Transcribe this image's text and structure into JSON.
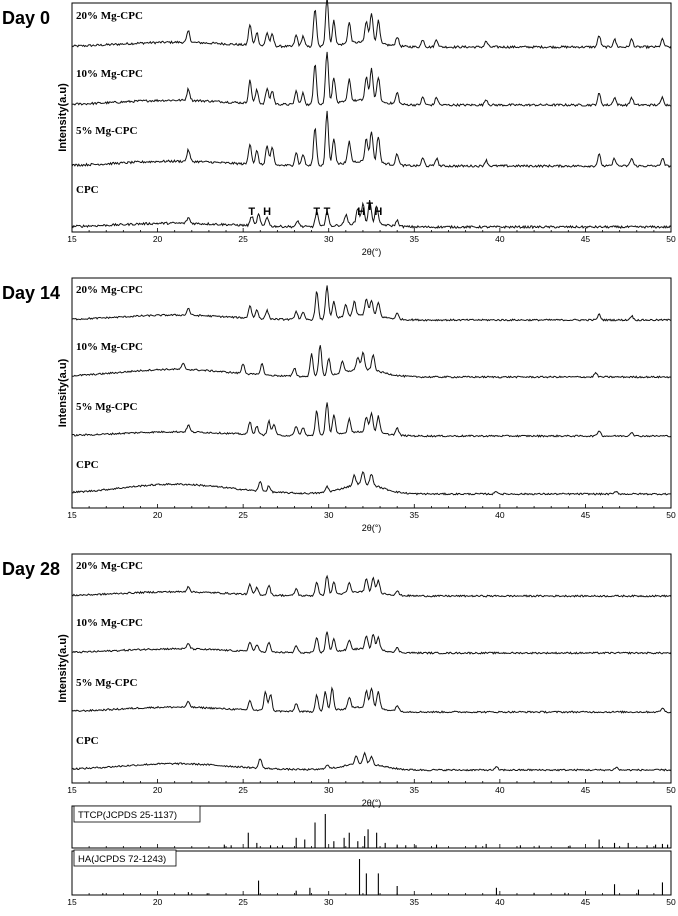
{
  "chart_data": [
    {
      "type": "line",
      "title": "Day 0",
      "xlabel": "2θ(°)",
      "ylabel": "Intensity(a.u)",
      "xlim": [
        15,
        50
      ],
      "xticks": [
        15,
        20,
        25,
        30,
        35,
        40,
        45,
        50
      ],
      "series": [
        {
          "name": "20% Mg-CPC",
          "peaks": [
            {
              "x": 21.8,
              "h": 0.3
            },
            {
              "x": 25.4,
              "h": 0.55
            },
            {
              "x": 25.8,
              "h": 0.35
            },
            {
              "x": 26.4,
              "h": 0.35
            },
            {
              "x": 26.7,
              "h": 0.3
            },
            {
              "x": 28.1,
              "h": 0.3
            },
            {
              "x": 28.5,
              "h": 0.28
            },
            {
              "x": 29.2,
              "h": 1.0
            },
            {
              "x": 29.9,
              "h": 1.3
            },
            {
              "x": 30.3,
              "h": 0.65
            },
            {
              "x": 31.2,
              "h": 0.55
            },
            {
              "x": 32.2,
              "h": 0.55
            },
            {
              "x": 32.5,
              "h": 0.8
            },
            {
              "x": 32.9,
              "h": 0.6
            },
            {
              "x": 34.0,
              "h": 0.25
            },
            {
              "x": 35.5,
              "h": 0.2
            },
            {
              "x": 36.3,
              "h": 0.2
            },
            {
              "x": 39.2,
              "h": 0.15
            },
            {
              "x": 45.8,
              "h": 0.3
            },
            {
              "x": 46.7,
              "h": 0.2
            },
            {
              "x": 47.7,
              "h": 0.2
            },
            {
              "x": 49.5,
              "h": 0.2
            }
          ],
          "hump": 0.25
        },
        {
          "name": "10% Mg-CPC",
          "peaks": [
            {
              "x": 21.8,
              "h": 0.3
            },
            {
              "x": 25.4,
              "h": 0.6
            },
            {
              "x": 25.8,
              "h": 0.35
            },
            {
              "x": 26.4,
              "h": 0.4
            },
            {
              "x": 26.7,
              "h": 0.35
            },
            {
              "x": 28.1,
              "h": 0.35
            },
            {
              "x": 28.5,
              "h": 0.3
            },
            {
              "x": 29.2,
              "h": 1.1
            },
            {
              "x": 29.9,
              "h": 1.4
            },
            {
              "x": 30.3,
              "h": 0.7
            },
            {
              "x": 31.2,
              "h": 0.6
            },
            {
              "x": 32.2,
              "h": 0.6
            },
            {
              "x": 32.5,
              "h": 0.85
            },
            {
              "x": 32.9,
              "h": 0.65
            },
            {
              "x": 34.0,
              "h": 0.3
            },
            {
              "x": 35.5,
              "h": 0.2
            },
            {
              "x": 36.3,
              "h": 0.2
            },
            {
              "x": 39.2,
              "h": 0.15
            },
            {
              "x": 45.8,
              "h": 0.3
            },
            {
              "x": 46.7,
              "h": 0.2
            },
            {
              "x": 47.7,
              "h": 0.2
            },
            {
              "x": 49.5,
              "h": 0.2
            }
          ],
          "hump": 0.25
        },
        {
          "name": "5% Mg-CPC",
          "peaks": [
            {
              "x": 21.8,
              "h": 0.3
            },
            {
              "x": 25.4,
              "h": 0.55
            },
            {
              "x": 25.8,
              "h": 0.35
            },
            {
              "x": 26.4,
              "h": 0.5
            },
            {
              "x": 26.7,
              "h": 0.45
            },
            {
              "x": 28.1,
              "h": 0.35
            },
            {
              "x": 28.5,
              "h": 0.3
            },
            {
              "x": 29.2,
              "h": 1.0
            },
            {
              "x": 29.9,
              "h": 1.4
            },
            {
              "x": 30.3,
              "h": 0.7
            },
            {
              "x": 31.2,
              "h": 0.55
            },
            {
              "x": 32.2,
              "h": 0.6
            },
            {
              "x": 32.5,
              "h": 0.8
            },
            {
              "x": 32.9,
              "h": 0.7
            },
            {
              "x": 34.0,
              "h": 0.3
            },
            {
              "x": 35.5,
              "h": 0.2
            },
            {
              "x": 36.3,
              "h": 0.2
            },
            {
              "x": 39.2,
              "h": 0.15
            },
            {
              "x": 45.8,
              "h": 0.3
            },
            {
              "x": 46.7,
              "h": 0.2
            },
            {
              "x": 47.7,
              "h": 0.2
            },
            {
              "x": 49.5,
              "h": 0.2
            }
          ],
          "hump": 0.25
        },
        {
          "name": "CPC",
          "peaks": [
            {
              "x": 21.8,
              "h": 0.15
            },
            {
              "x": 25.5,
              "h": 0.25
            },
            {
              "x": 25.9,
              "h": 0.3
            },
            {
              "x": 26.4,
              "h": 0.25
            },
            {
              "x": 28.2,
              "h": 0.15
            },
            {
              "x": 29.3,
              "h": 0.4
            },
            {
              "x": 29.9,
              "h": 0.4
            },
            {
              "x": 31.0,
              "h": 0.25
            },
            {
              "x": 31.7,
              "h": 0.4
            },
            {
              "x": 32.0,
              "h": 0.5
            },
            {
              "x": 32.4,
              "h": 0.6
            },
            {
              "x": 32.8,
              "h": 0.5
            },
            {
              "x": 34.0,
              "h": 0.15
            }
          ],
          "hump": 0.2
        }
      ],
      "annotations": [
        {
          "text": "T",
          "x": 25.5
        },
        {
          "text": "H",
          "x": 26.4
        },
        {
          "text": "T",
          "x": 29.3
        },
        {
          "text": "T",
          "x": 29.9
        },
        {
          "text": "H",
          "x": 31.9
        },
        {
          "text": "T",
          "x": 32.4
        },
        {
          "text": "H",
          "x": 32.9
        }
      ]
    },
    {
      "type": "line",
      "title": "Day 14",
      "xlabel": "2θ(°)",
      "ylabel": "Intensity(a.u)",
      "xlim": [
        15,
        50
      ],
      "xticks": [
        15,
        20,
        25,
        30,
        35,
        40,
        45,
        50
      ],
      "series": [
        {
          "name": "20% Mg-CPC",
          "peaks": [
            {
              "x": 21.8,
              "h": 0.25
            },
            {
              "x": 25.4,
              "h": 0.45
            },
            {
              "x": 25.8,
              "h": 0.3
            },
            {
              "x": 26.4,
              "h": 0.3
            },
            {
              "x": 28.1,
              "h": 0.3
            },
            {
              "x": 28.5,
              "h": 0.25
            },
            {
              "x": 29.3,
              "h": 1.0
            },
            {
              "x": 29.9,
              "h": 1.2
            },
            {
              "x": 30.3,
              "h": 0.6
            },
            {
              "x": 31.0,
              "h": 0.45
            },
            {
              "x": 31.5,
              "h": 0.5
            },
            {
              "x": 32.2,
              "h": 0.6
            },
            {
              "x": 32.5,
              "h": 0.55
            },
            {
              "x": 32.9,
              "h": 0.5
            },
            {
              "x": 34.0,
              "h": 0.2
            },
            {
              "x": 45.8,
              "h": 0.2
            },
            {
              "x": 47.7,
              "h": 0.15
            }
          ],
          "hump": 0.35
        },
        {
          "name": "10% Mg-CPC",
          "peaks": [
            {
              "x": 21.5,
              "h": 0.2
            },
            {
              "x": 25.0,
              "h": 0.35
            },
            {
              "x": 26.1,
              "h": 0.4
            },
            {
              "x": 28.0,
              "h": 0.3
            },
            {
              "x": 29.0,
              "h": 0.8
            },
            {
              "x": 29.5,
              "h": 1.1
            },
            {
              "x": 30.0,
              "h": 0.6
            },
            {
              "x": 30.8,
              "h": 0.4
            },
            {
              "x": 31.7,
              "h": 0.45
            },
            {
              "x": 32.0,
              "h": 0.6
            },
            {
              "x": 32.6,
              "h": 0.55
            },
            {
              "x": 45.6,
              "h": 0.15
            }
          ],
          "hump": 0.55
        },
        {
          "name": "5% Mg-CPC",
          "peaks": [
            {
              "x": 21.8,
              "h": 0.25
            },
            {
              "x": 25.4,
              "h": 0.45
            },
            {
              "x": 25.8,
              "h": 0.3
            },
            {
              "x": 26.5,
              "h": 0.5
            },
            {
              "x": 26.8,
              "h": 0.4
            },
            {
              "x": 28.1,
              "h": 0.35
            },
            {
              "x": 28.5,
              "h": 0.3
            },
            {
              "x": 29.3,
              "h": 0.9
            },
            {
              "x": 29.9,
              "h": 1.2
            },
            {
              "x": 30.3,
              "h": 0.7
            },
            {
              "x": 31.2,
              "h": 0.5
            },
            {
              "x": 32.2,
              "h": 0.55
            },
            {
              "x": 32.5,
              "h": 0.7
            },
            {
              "x": 32.9,
              "h": 0.6
            },
            {
              "x": 34.0,
              "h": 0.25
            },
            {
              "x": 45.8,
              "h": 0.2
            },
            {
              "x": 47.7,
              "h": 0.15
            }
          ],
          "hump": 0.3
        },
        {
          "name": "CPC",
          "peaks": [
            {
              "x": 26.0,
              "h": 0.35
            },
            {
              "x": 26.5,
              "h": 0.2
            },
            {
              "x": 29.9,
              "h": 0.2
            },
            {
              "x": 31.5,
              "h": 0.35
            },
            {
              "x": 32.0,
              "h": 0.45
            },
            {
              "x": 32.5,
              "h": 0.4
            },
            {
              "x": 39.8,
              "h": 0.1
            },
            {
              "x": 46.8,
              "h": 0.1
            }
          ],
          "hump": 0.7
        }
      ]
    },
    {
      "type": "line",
      "title": "Day 28",
      "xlabel": "2θ(°)",
      "ylabel": "Intensity(a.u)",
      "xlim": [
        15,
        50
      ],
      "xticks": [
        15,
        20,
        25,
        30,
        35,
        40,
        45,
        50
      ],
      "series": [
        {
          "name": "20% Mg-CPC",
          "peaks": [
            {
              "x": 21.8,
              "h": 0.2
            },
            {
              "x": 25.4,
              "h": 0.35
            },
            {
              "x": 25.8,
              "h": 0.25
            },
            {
              "x": 26.5,
              "h": 0.35
            },
            {
              "x": 28.1,
              "h": 0.25
            },
            {
              "x": 29.3,
              "h": 0.5
            },
            {
              "x": 29.9,
              "h": 0.7
            },
            {
              "x": 30.3,
              "h": 0.45
            },
            {
              "x": 31.2,
              "h": 0.35
            },
            {
              "x": 32.2,
              "h": 0.45
            },
            {
              "x": 32.6,
              "h": 0.5
            },
            {
              "x": 32.9,
              "h": 0.45
            },
            {
              "x": 34.0,
              "h": 0.15
            }
          ],
          "hump": 0.3
        },
        {
          "name": "10% Mg-CPC",
          "peaks": [
            {
              "x": 21.8,
              "h": 0.2
            },
            {
              "x": 25.4,
              "h": 0.35
            },
            {
              "x": 25.8,
              "h": 0.25
            },
            {
              "x": 26.5,
              "h": 0.35
            },
            {
              "x": 28.1,
              "h": 0.25
            },
            {
              "x": 29.3,
              "h": 0.55
            },
            {
              "x": 29.9,
              "h": 0.75
            },
            {
              "x": 30.3,
              "h": 0.45
            },
            {
              "x": 31.2,
              "h": 0.35
            },
            {
              "x": 32.2,
              "h": 0.45
            },
            {
              "x": 32.6,
              "h": 0.55
            },
            {
              "x": 32.9,
              "h": 0.45
            },
            {
              "x": 34.0,
              "h": 0.15
            }
          ],
          "hump": 0.3
        },
        {
          "name": "5% Mg-CPC",
          "peaks": [
            {
              "x": 21.8,
              "h": 0.2
            },
            {
              "x": 25.4,
              "h": 0.35
            },
            {
              "x": 26.3,
              "h": 0.7
            },
            {
              "x": 26.6,
              "h": 0.6
            },
            {
              "x": 28.1,
              "h": 0.3
            },
            {
              "x": 29.3,
              "h": 0.6
            },
            {
              "x": 29.8,
              "h": 0.7
            },
            {
              "x": 30.2,
              "h": 0.8
            },
            {
              "x": 31.2,
              "h": 0.4
            },
            {
              "x": 32.2,
              "h": 0.6
            },
            {
              "x": 32.5,
              "h": 0.7
            },
            {
              "x": 32.9,
              "h": 0.6
            },
            {
              "x": 34.0,
              "h": 0.2
            },
            {
              "x": 49.5,
              "h": 0.15
            }
          ],
          "hump": 0.35
        },
        {
          "name": "CPC",
          "peaks": [
            {
              "x": 26.0,
              "h": 0.35
            },
            {
              "x": 29.9,
              "h": 0.15
            },
            {
              "x": 31.6,
              "h": 0.3
            },
            {
              "x": 32.1,
              "h": 0.4
            },
            {
              "x": 32.5,
              "h": 0.3
            },
            {
              "x": 39.8,
              "h": 0.1
            },
            {
              "x": 46.8,
              "h": 0.1
            }
          ],
          "hump": 0.45
        }
      ]
    },
    {
      "type": "bar",
      "title": "TTCP(JCPDS 25-1137)",
      "xlim": [
        15,
        50
      ],
      "sticks": [
        [
          23.9,
          0.1
        ],
        [
          24.3,
          0.08
        ],
        [
          25.3,
          0.45
        ],
        [
          25.8,
          0.15
        ],
        [
          26.6,
          0.08
        ],
        [
          27.3,
          0.08
        ],
        [
          28.1,
          0.3
        ],
        [
          28.6,
          0.25
        ],
        [
          29.2,
          0.75
        ],
        [
          29.8,
          1.0
        ],
        [
          30.3,
          0.2
        ],
        [
          30.9,
          0.3
        ],
        [
          31.2,
          0.45
        ],
        [
          31.7,
          0.2
        ],
        [
          32.1,
          0.35
        ],
        [
          32.3,
          0.55
        ],
        [
          32.8,
          0.45
        ],
        [
          33.3,
          0.15
        ],
        [
          34.0,
          0.1
        ],
        [
          34.5,
          0.08
        ],
        [
          35.1,
          0.08
        ],
        [
          36.3,
          0.1
        ],
        [
          38.6,
          0.08
        ],
        [
          39.2,
          0.12
        ],
        [
          41.2,
          0.08
        ],
        [
          42.3,
          0.07
        ],
        [
          44.1,
          0.07
        ],
        [
          45.8,
          0.25
        ],
        [
          46.7,
          0.15
        ],
        [
          47.5,
          0.15
        ],
        [
          48.6,
          0.08
        ],
        [
          49.1,
          0.1
        ],
        [
          49.5,
          0.12
        ],
        [
          49.8,
          0.1
        ]
      ]
    },
    {
      "type": "bar",
      "title": "HA(JCPDS 72-1243)",
      "xlim": [
        15,
        50
      ],
      "xticks": [
        15,
        20,
        25,
        30,
        35,
        40,
        45,
        50
      ],
      "sticks": [
        [
          16.8,
          0.05
        ],
        [
          21.8,
          0.08
        ],
        [
          22.9,
          0.05
        ],
        [
          25.9,
          0.4
        ],
        [
          28.1,
          0.12
        ],
        [
          28.9,
          0.2
        ],
        [
          31.8,
          1.0
        ],
        [
          32.2,
          0.6
        ],
        [
          32.9,
          0.6
        ],
        [
          34.0,
          0.25
        ],
        [
          39.8,
          0.2
        ],
        [
          42.0,
          0.06
        ],
        [
          43.8,
          0.06
        ],
        [
          46.7,
          0.3
        ],
        [
          48.1,
          0.15
        ],
        [
          49.5,
          0.35
        ]
      ]
    }
  ]
}
